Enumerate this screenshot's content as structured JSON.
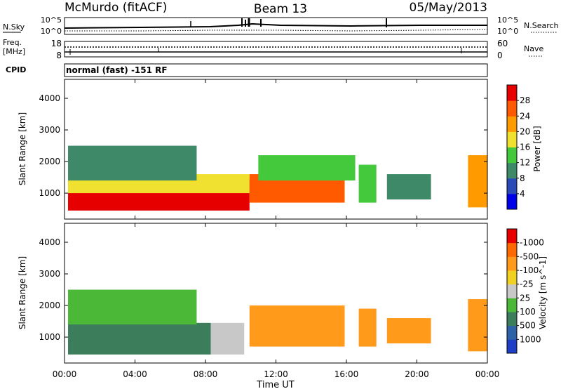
{
  "header": {
    "station": "McMurdo (fitACF)",
    "beam": "Beam 13",
    "date": "05/May/2013"
  },
  "top_panel": {
    "nsky_label": "N.Sky",
    "nsky_ticks": [
      "10^5",
      "10^0"
    ],
    "nsearch_label": "N.Search",
    "nsearch_ticks": [
      "10^5",
      "10^0"
    ],
    "freq_label_1": "Freq.",
    "freq_label_2": "[MHz]",
    "freq_ticks": [
      "18",
      "8"
    ],
    "nave_label": "Nave",
    "nave_ticks": [
      "60",
      "0"
    ],
    "cpid_label": "CPID",
    "cpid_text": "normal (fast) -151 RF"
  },
  "chart_data": [
    {
      "type": "heatmap",
      "name": "power",
      "ylabel": "Slant Range [km]",
      "colorbar_label": "Power [dB]",
      "yticks": [
        1000,
        2000,
        3000,
        4000
      ],
      "ylim": [
        180,
        4600
      ],
      "xlim": [
        0,
        24
      ],
      "colorbar_ticks": [
        "4",
        "8",
        "12",
        "16",
        "20",
        "24",
        "28"
      ],
      "colorbar_colors": [
        "#0000e6",
        "#2a4ab8",
        "#3e8a68",
        "#44c83c",
        "#f0e030",
        "#ff9a00",
        "#ff5a00",
        "#e60000"
      ],
      "regions": [
        {
          "t0": 0.2,
          "t1": 10.5,
          "r0": 450,
          "r1": 1450,
          "value": 28
        },
        {
          "t0": 0.2,
          "t1": 10.5,
          "r0": 1000,
          "r1": 1600,
          "value": 16
        },
        {
          "t0": 0.2,
          "t1": 7.5,
          "r0": 1400,
          "r1": 2500,
          "value": 8
        },
        {
          "t0": 10.5,
          "t1": 15.9,
          "r0": 700,
          "r1": 1600,
          "value": 24
        },
        {
          "t0": 11.0,
          "t1": 16.5,
          "r0": 1400,
          "r1": 2200,
          "value": 12
        },
        {
          "t0": 16.7,
          "t1": 17.7,
          "r0": 700,
          "r1": 1900,
          "value": 14
        },
        {
          "t0": 18.3,
          "t1": 20.8,
          "r0": 800,
          "r1": 1600,
          "value": 8
        },
        {
          "t0": 22.9,
          "t1": 24.0,
          "r0": 550,
          "r1": 2200,
          "value": 20
        }
      ]
    },
    {
      "type": "heatmap",
      "name": "velocity",
      "ylabel": "Slant Range [km]",
      "colorbar_label": "Velocity [m s^-1]",
      "yticks": [
        1000,
        2000,
        3000,
        4000
      ],
      "ylim": [
        180,
        4600
      ],
      "xlim": [
        0,
        24
      ],
      "colorbar_ticks": [
        "1000",
        "500",
        "100",
        "25",
        "-25",
        "-100",
        "-500",
        "-1000"
      ],
      "colorbar_colors": [
        "#1e3ec8",
        "#2e62a8",
        "#3c7e5c",
        "#4cb838",
        "#c8c8c8",
        "#f0d020",
        "#ff9a1a",
        "#ff6a00",
        "#e60000"
      ],
      "regions": [
        {
          "t0": 0.2,
          "t1": 8.3,
          "r0": 450,
          "r1": 1450,
          "value": 120
        },
        {
          "t0": 8.3,
          "t1": 10.2,
          "r0": 450,
          "r1": 1450,
          "value": 0
        },
        {
          "t0": 0.2,
          "t1": 7.5,
          "r0": 1400,
          "r1": 2500,
          "value": 60
        },
        {
          "t0": 10.5,
          "t1": 15.9,
          "r0": 700,
          "r1": 2000,
          "value": -150
        },
        {
          "t0": 16.7,
          "t1": 17.7,
          "r0": 700,
          "r1": 1900,
          "value": -150
        },
        {
          "t0": 18.3,
          "t1": 20.8,
          "r0": 800,
          "r1": 1600,
          "value": -150
        },
        {
          "t0": 22.9,
          "t1": 24.0,
          "r0": 550,
          "r1": 2200,
          "value": -150
        }
      ]
    }
  ],
  "xaxis": {
    "ticks": [
      "00:00",
      "04:00",
      "08:00",
      "12:00",
      "16:00",
      "20:00",
      "00:00"
    ],
    "label": "Time UT"
  }
}
